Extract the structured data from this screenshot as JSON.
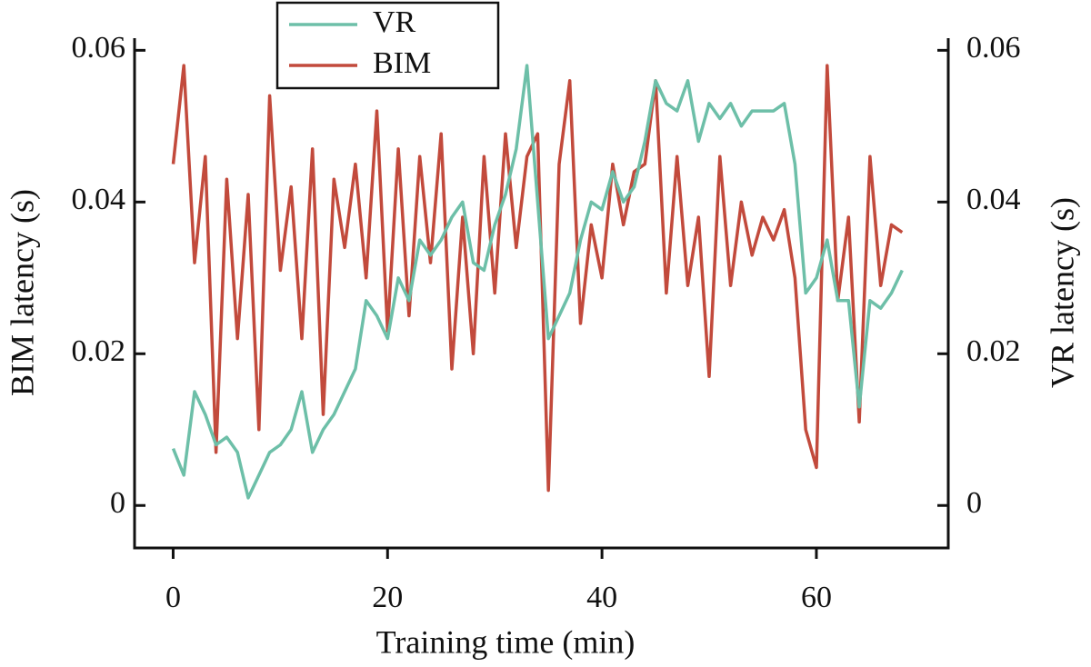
{
  "chart_data": {
    "type": "line",
    "x_label": "Training time (min)",
    "y_label": "BIM latency (s)",
    "y2_label": "VR latency (s)",
    "x": [
      0,
      1,
      2,
      3,
      4,
      5,
      6,
      7,
      8,
      9,
      10,
      11,
      12,
      13,
      14,
      15,
      16,
      17,
      18,
      19,
      20,
      21,
      22,
      23,
      24,
      25,
      26,
      27,
      28,
      29,
      30,
      31,
      32,
      33,
      34,
      35,
      36,
      37,
      38,
      39,
      40,
      41,
      42,
      43,
      44,
      45,
      46,
      47,
      48,
      49,
      50,
      51,
      52,
      53,
      54,
      55,
      56,
      57,
      58,
      59,
      60,
      61,
      62,
      63,
      64,
      65,
      66,
      67,
      68
    ],
    "series": [
      {
        "name": "VR",
        "color": "#6dbfa8",
        "axis": "y2",
        "values": [
          0.0075,
          0.004,
          0.015,
          0.012,
          0.008,
          0.009,
          0.007,
          0.001,
          0.004,
          0.007,
          0.008,
          0.01,
          0.015,
          0.007,
          0.01,
          0.012,
          0.015,
          0.018,
          0.027,
          0.025,
          0.022,
          0.03,
          0.027,
          0.035,
          0.033,
          0.035,
          0.038,
          0.04,
          0.032,
          0.031,
          0.037,
          0.041,
          0.047,
          0.058,
          0.04,
          0.022,
          0.025,
          0.028,
          0.035,
          0.04,
          0.039,
          0.044,
          0.04,
          0.042,
          0.048,
          0.056,
          0.053,
          0.052,
          0.056,
          0.048,
          0.053,
          0.051,
          0.053,
          0.05,
          0.052,
          0.052,
          0.052,
          0.053,
          0.045,
          0.028,
          0.03,
          0.035,
          0.027,
          0.027,
          0.013,
          0.027,
          0.026,
          0.028,
          0.031
        ]
      },
      {
        "name": "BIM",
        "color": "#c24a3c",
        "axis": "y",
        "values": [
          0.045,
          0.058,
          0.032,
          0.046,
          0.007,
          0.043,
          0.022,
          0.041,
          0.01,
          0.054,
          0.031,
          0.042,
          0.022,
          0.047,
          0.012,
          0.043,
          0.034,
          0.045,
          0.03,
          0.052,
          0.023,
          0.047,
          0.025,
          0.046,
          0.032,
          0.049,
          0.018,
          0.038,
          0.02,
          0.046,
          0.028,
          0.049,
          0.034,
          0.046,
          0.049,
          0.002,
          0.045,
          0.056,
          0.024,
          0.037,
          0.03,
          0.045,
          0.037,
          0.044,
          0.045,
          0.056,
          0.028,
          0.046,
          0.029,
          0.038,
          0.017,
          0.046,
          0.029,
          0.04,
          0.033,
          0.038,
          0.035,
          0.039,
          0.03,
          0.01,
          0.005,
          0.058,
          0.027,
          0.038,
          0.011,
          0.046,
          0.029,
          0.037,
          0.036
        ]
      }
    ],
    "xlim": [
      -3.6,
      72.3
    ],
    "xticks": [
      0,
      20,
      40,
      60
    ],
    "ylim": [
      -0.0056,
      0.0616
    ],
    "yticks": [
      0,
      0.02,
      0.04,
      0.06
    ],
    "y2lim": [
      -0.0056,
      0.0616
    ],
    "y2ticks": [
      0,
      0.02,
      0.04,
      0.06
    ],
    "legend": "top"
  }
}
